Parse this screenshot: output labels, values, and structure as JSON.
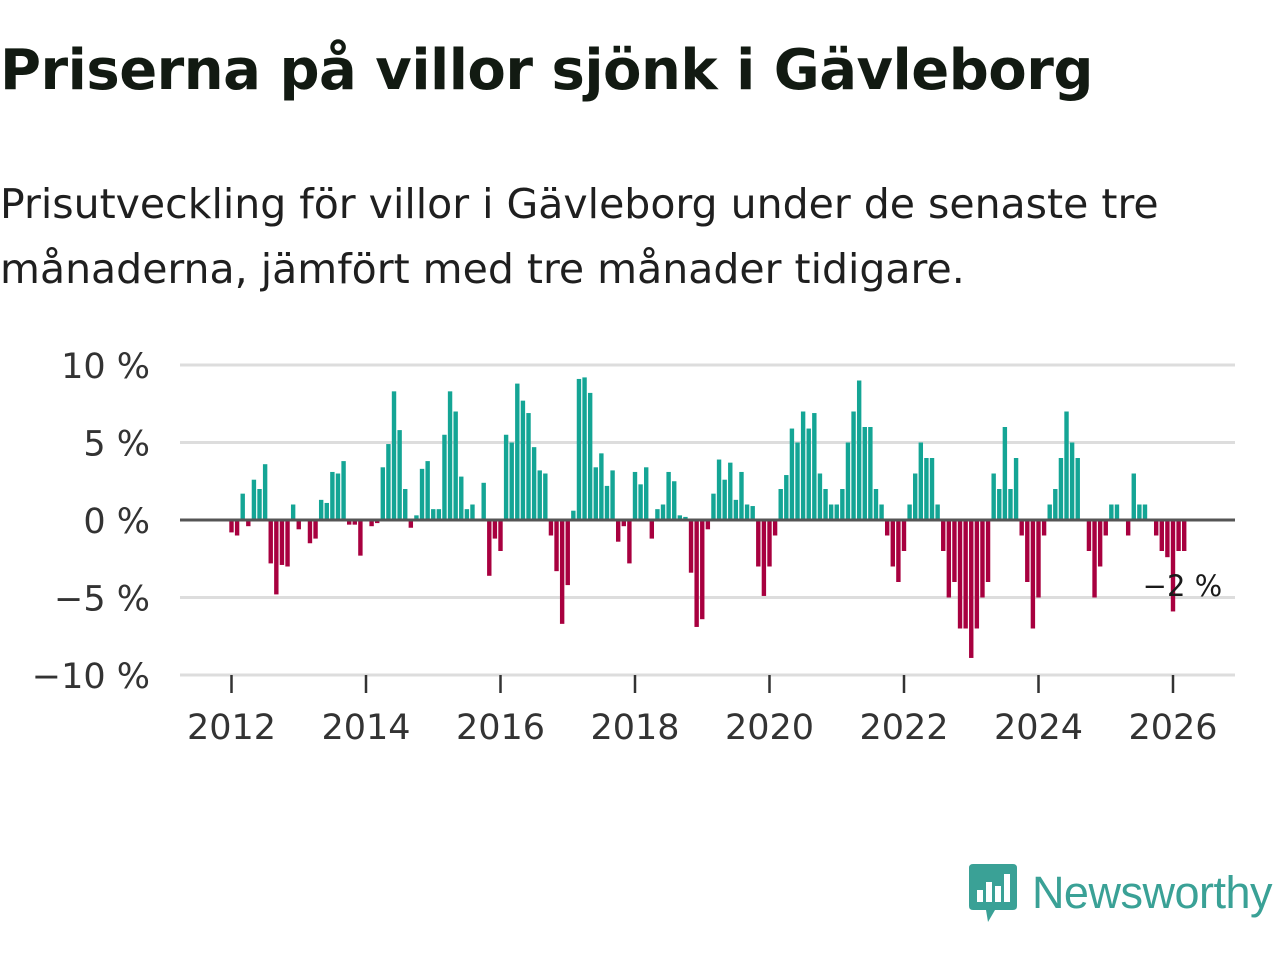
{
  "title": "Priserna på villor sjönk i Gävleborg",
  "subtitle": "Prisutveckling för villor i Gävleborg under de senaste tre månaderna, jämfört med tre månader tidigare.",
  "brand": "Newsworthy",
  "colors": {
    "positive": "#14a595",
    "negative": "#a8003f",
    "grid": "#dddddd",
    "zero_line": "#555555",
    "brand": "#3aa196"
  },
  "chart_data": {
    "type": "bar",
    "title": "Priserna på villor sjönk i Gävleborg",
    "subtitle": "Prisutveckling för villor i Gävleborg under de senaste tre månaderna, jämfört med tre månader tidigare.",
    "xlabel": "",
    "ylabel": "",
    "ylim": [
      -10.5,
      10
    ],
    "xlim": [
      2011.25,
      2026.9
    ],
    "y_ticks": [
      10,
      5,
      0,
      -5,
      -10
    ],
    "y_tick_labels": [
      "10 %",
      "5 %",
      "0 %",
      "−5 %",
      "−10 %"
    ],
    "x_ticks": [
      2012,
      2014,
      2016,
      2018,
      2020,
      2022,
      2024,
      2026
    ],
    "x_tick_labels": [
      "2012",
      "2014",
      "2016",
      "2018",
      "2020",
      "2022",
      "2024",
      "2026"
    ],
    "start_year": 2012,
    "start_month": 1,
    "annotation": "−2 %",
    "series": [
      {
        "name": "Prisutveckling",
        "values": [
          -0.8,
          -1.0,
          1.7,
          -0.4,
          2.6,
          2.0,
          3.6,
          -2.8,
          -4.8,
          -2.9,
          -3.0,
          1.0,
          -0.6,
          0.0,
          -1.5,
          -1.2,
          1.3,
          1.1,
          3.1,
          3.0,
          3.8,
          -0.3,
          -0.3,
          -2.3,
          0.0,
          -0.4,
          -0.2,
          3.4,
          4.9,
          8.3,
          5.8,
          2.0,
          -0.5,
          0.3,
          3.3,
          3.8,
          0.7,
          0.7,
          5.5,
          8.3,
          7.0,
          2.8,
          0.7,
          1.0,
          0.0,
          2.4,
          -3.6,
          -1.2,
          -2.0,
          5.5,
          5.0,
          8.8,
          7.7,
          6.9,
          4.7,
          3.2,
          3.0,
          -1.0,
          -3.3,
          -6.7,
          -4.2,
          0.6,
          9.1,
          9.2,
          8.2,
          3.4,
          4.3,
          2.2,
          3.2,
          -1.4,
          -0.4,
          -2.8,
          3.1,
          2.3,
          3.4,
          -1.2,
          0.7,
          1.0,
          3.1,
          2.5,
          0.3,
          0.2,
          -3.4,
          -6.9,
          -6.4,
          -0.6,
          1.7,
          3.9,
          2.6,
          3.7,
          1.3,
          3.1,
          1.0,
          0.9,
          -3.0,
          -4.9,
          -3.0,
          -1.0,
          2.0,
          2.9,
          5.9,
          5.0,
          7.0,
          5.9,
          6.9,
          3.0,
          2.0,
          1.0,
          1.0,
          2.0,
          5.0,
          7.0,
          9.0,
          6.0,
          6.0,
          2.0,
          1.0,
          -1.0,
          -3.0,
          -4.0,
          -2.0,
          1.0,
          3.0,
          5.0,
          4.0,
          4.0,
          1.0,
          -2.0,
          -5.0,
          -4.0,
          -7.0,
          -7.0,
          -8.9,
          -7.0,
          -5.0,
          -4.0,
          3.0,
          2.0,
          6.0,
          2.0,
          4.0,
          -1.0,
          -4.0,
          -7.0,
          -5.0,
          -1.0,
          1.0,
          2.0,
          4.0,
          7.0,
          5.0,
          4.0,
          0.0,
          -2.0,
          -5.0,
          -3.0,
          -1.0,
          1.0,
          1.0,
          0.0,
          -1.0,
          3.0,
          1.0,
          1.0,
          0.0,
          -1.0,
          -2.0,
          -2.4,
          -5.9,
          -2.0,
          -2.0
        ]
      }
    ]
  }
}
